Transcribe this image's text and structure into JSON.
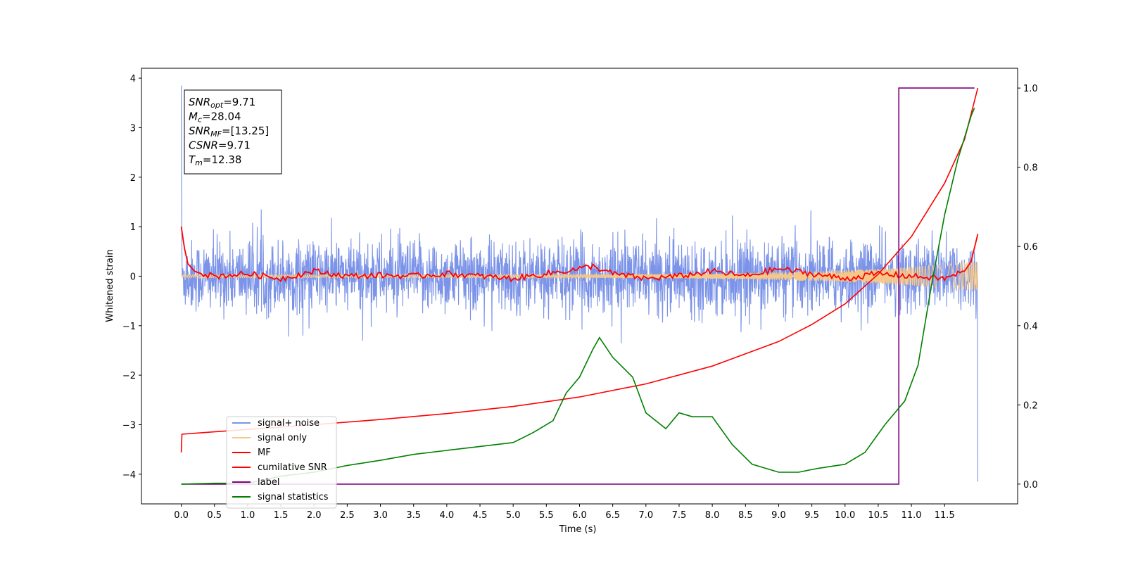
{
  "chart_data": {
    "type": "line",
    "xlabel": "Time (s)",
    "ylabel": "Whitened strain",
    "xlim": [
      -0.6,
      12.6
    ],
    "ylim": [
      -4.6,
      4.2
    ],
    "y2lim": [
      -0.05,
      1.05
    ],
    "x_ticks": [
      "0.0",
      "0.5",
      "1.0",
      "1.5",
      "2.0",
      "2.5",
      "3.0",
      "3.5",
      "4.0",
      "4.5",
      "5.0",
      "5.5",
      "6.0",
      "6.5",
      "7.0",
      "7.5",
      "8.0",
      "8.5",
      "9.0",
      "9.5",
      "10.0",
      "10.5",
      "11.0",
      "11.5"
    ],
    "y_ticks": [
      "4",
      "3",
      "2",
      "1",
      "0",
      "−1",
      "−2",
      "−3",
      "−4"
    ],
    "y2_ticks": [
      "1.0",
      "0.8",
      "0.6",
      "0.4",
      "0.2",
      "0.0"
    ],
    "grid": false,
    "legend_position": "lower-left",
    "annotation": {
      "lines": [
        {
          "name": "SNR",
          "sub": "opt",
          "value": "=9.71"
        },
        {
          "name": "M",
          "sub": "c",
          "value": "=28.04"
        },
        {
          "name": "SNR",
          "sub": "MF",
          "value": "=[13.25]"
        },
        {
          "name": "CSNR",
          "sub": "",
          "value": "=9.71"
        },
        {
          "name": "T",
          "sub": "m",
          "value": "=12.38"
        }
      ]
    },
    "series": [
      {
        "name": "signal+ noise",
        "color": "#7b93e8",
        "axis": "left",
        "style": "noise",
        "x_range": [
          0,
          12.0
        ],
        "amplitude": 0.45,
        "spike_start": 3.85,
        "spike_end": -4.15
      },
      {
        "name": "signal only",
        "color": "#f5c88a",
        "axis": "left",
        "style": "chirp",
        "x_range": [
          0,
          12.0
        ],
        "amplitude_start": 0.03,
        "amplitude_end": 0.3
      },
      {
        "name": "MF",
        "color": "#ff0000",
        "axis": "left",
        "x": [
          0.0,
          0.05,
          0.1,
          0.2,
          0.3,
          0.5,
          0.7,
          1.0,
          1.5,
          2.0,
          2.5,
          3.0,
          3.5,
          4.0,
          4.5,
          5.0,
          5.5,
          6.0,
          6.2,
          6.5,
          7.0,
          7.5,
          8.0,
          8.5,
          9.0,
          9.5,
          10.0,
          10.5,
          11.0,
          11.5,
          11.8,
          11.9,
          12.0
        ],
        "values": [
          1.0,
          0.55,
          0.25,
          0.1,
          0.05,
          0.0,
          0.02,
          0.05,
          -0.05,
          0.1,
          0.0,
          0.02,
          0.0,
          0.05,
          0.0,
          -0.05,
          0.05,
          0.15,
          0.2,
          0.05,
          -0.05,
          0.0,
          0.1,
          0.0,
          0.15,
          0.05,
          -0.05,
          0.05,
          0.0,
          -0.05,
          0.1,
          0.3,
          0.85
        ]
      },
      {
        "name": "cumilative SNR",
        "color": "#ff0000",
        "axis": "right",
        "x": [
          0.0,
          0.01,
          0.5,
          1.0,
          2.0,
          3.0,
          4.0,
          5.0,
          6.0,
          7.0,
          8.0,
          9.0,
          9.5,
          10.0,
          10.5,
          11.0,
          11.5,
          11.8,
          12.0
        ],
        "values": [
          0.08,
          0.126,
          0.132,
          0.138,
          0.15,
          0.163,
          0.178,
          0.196,
          0.22,
          0.253,
          0.298,
          0.36,
          0.403,
          0.455,
          0.53,
          0.625,
          0.76,
          0.87,
          1.0
        ]
      },
      {
        "name": "label",
        "color": "#800080",
        "axis": "right",
        "x": [
          0.0,
          10.81,
          10.81,
          11.95
        ],
        "values": [
          0.0,
          0.0,
          1.0,
          1.0
        ]
      },
      {
        "name": "signal statistics",
        "color": "#008000",
        "axis": "right",
        "x": [
          0.0,
          0.5,
          1.0,
          1.5,
          2.0,
          2.5,
          3.0,
          3.5,
          4.0,
          4.5,
          5.0,
          5.3,
          5.6,
          5.8,
          6.0,
          6.2,
          6.3,
          6.5,
          6.8,
          7.0,
          7.3,
          7.5,
          7.7,
          8.0,
          8.3,
          8.6,
          9.0,
          9.3,
          9.6,
          10.0,
          10.3,
          10.6,
          10.9,
          11.1,
          11.3,
          11.5,
          11.7,
          11.9,
          11.95
        ],
        "values": [
          0.0,
          0.002,
          0.002,
          0.02,
          0.03,
          0.047,
          0.06,
          0.075,
          0.085,
          0.095,
          0.105,
          0.13,
          0.16,
          0.23,
          0.27,
          0.34,
          0.37,
          0.32,
          0.27,
          0.18,
          0.14,
          0.18,
          0.17,
          0.17,
          0.1,
          0.05,
          0.03,
          0.03,
          0.04,
          0.05,
          0.08,
          0.15,
          0.21,
          0.3,
          0.5,
          0.68,
          0.82,
          0.93,
          0.95
        ]
      }
    ]
  }
}
